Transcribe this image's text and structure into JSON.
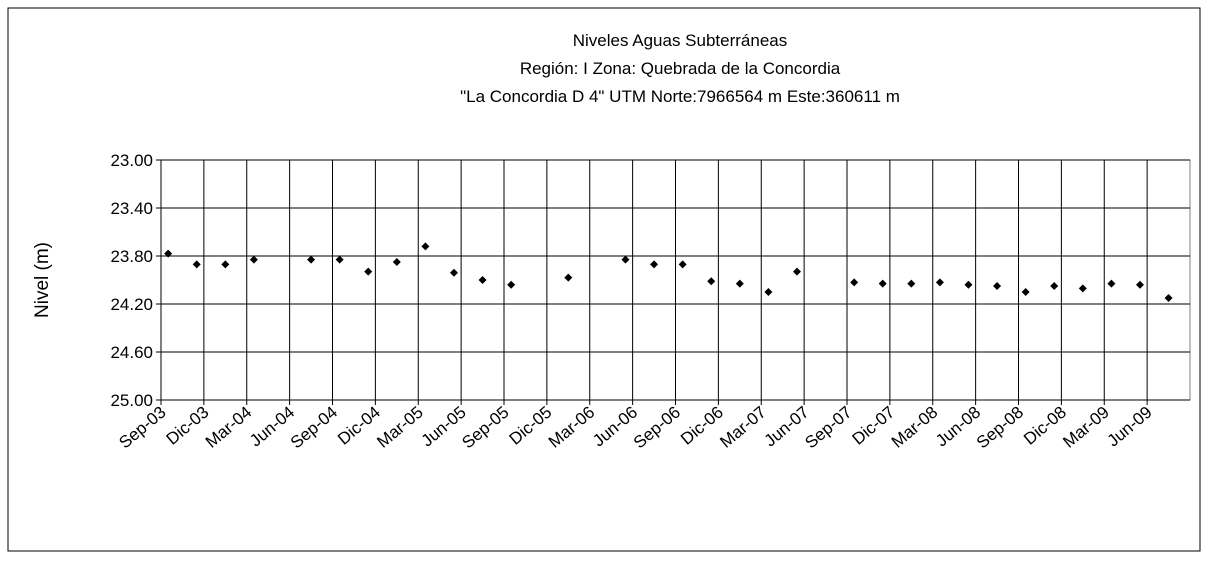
{
  "chart_data": {
    "type": "scatter",
    "title": [
      "Niveles Aguas Subterráneas",
      "Región: I  Zona: Quebrada de la Concordia",
      "\"La Concordia D 4\"  UTM Norte:7966564 m   Este:360611 m"
    ],
    "y_label": "Nivel (m)",
    "y_inverted": true,
    "grid": true,
    "xlim": [
      "2003-09",
      "2009-08"
    ],
    "xticks": [
      {
        "value": "2003-09",
        "label": "Sep-03"
      },
      {
        "value": "2003-12",
        "label": "Dic-03"
      },
      {
        "value": "2004-03",
        "label": "Mar-04"
      },
      {
        "value": "2004-06",
        "label": "Jun-04"
      },
      {
        "value": "2004-09",
        "label": "Sep-04"
      },
      {
        "value": "2004-12",
        "label": "Dic-04"
      },
      {
        "value": "2005-03",
        "label": "Mar-05"
      },
      {
        "value": "2005-06",
        "label": "Jun-05"
      },
      {
        "value": "2005-09",
        "label": "Sep-05"
      },
      {
        "value": "2005-12",
        "label": "Dic-05"
      },
      {
        "value": "2006-03",
        "label": "Mar-06"
      },
      {
        "value": "2006-06",
        "label": "Jun-06"
      },
      {
        "value": "2006-09",
        "label": "Sep-06"
      },
      {
        "value": "2006-12",
        "label": "Dic-06"
      },
      {
        "value": "2007-03",
        "label": "Mar-07"
      },
      {
        "value": "2007-06",
        "label": "Jun-07"
      },
      {
        "value": "2007-09",
        "label": "Sep-07"
      },
      {
        "value": "2007-12",
        "label": "Dic-07"
      },
      {
        "value": "2008-03",
        "label": "Mar-08"
      },
      {
        "value": "2008-06",
        "label": "Jun-08"
      },
      {
        "value": "2008-09",
        "label": "Sep-08"
      },
      {
        "value": "2008-12",
        "label": "Dic-08"
      },
      {
        "value": "2009-03",
        "label": "Mar-09"
      },
      {
        "value": "2009-06",
        "label": "Jun-09"
      }
    ],
    "ylim": [
      23,
      25
    ],
    "yticks": [
      {
        "value": 23,
        "label": "23.00"
      },
      {
        "value": 23.4,
        "label": "23.40"
      },
      {
        "value": 23.8,
        "label": "23.80"
      },
      {
        "value": 24.2,
        "label": "24.20"
      },
      {
        "value": 24.6,
        "label": "24.60"
      },
      {
        "value": 25,
        "label": "25.00"
      }
    ],
    "x": [
      "2003-09",
      "2003-11",
      "2004-01",
      "2004-03",
      "2004-07",
      "2004-09",
      "2004-11",
      "2005-01",
      "2005-03",
      "2005-05",
      "2005-07",
      "2005-09",
      "2006-01",
      "2006-05",
      "2006-07",
      "2006-09",
      "2006-11",
      "2007-01",
      "2007-03",
      "2007-05",
      "2007-09",
      "2007-11",
      "2008-01",
      "2008-03",
      "2008-05",
      "2008-07",
      "2008-09",
      "2008-11",
      "2009-01",
      "2009-03",
      "2009-05",
      "2009-07"
    ],
    "values": [
      23.78,
      23.87,
      23.87,
      23.83,
      23.83,
      23.83,
      23.93,
      23.85,
      23.72,
      23.94,
      24.0,
      24.04,
      23.98,
      23.83,
      23.87,
      23.87,
      24.01,
      24.03,
      24.1,
      23.93,
      24.02,
      24.03,
      24.03,
      24.02,
      24.04,
      24.05,
      24.1,
      24.05,
      24.07,
      24.03,
      24.04,
      24.15
    ],
    "color": "#000000"
  }
}
